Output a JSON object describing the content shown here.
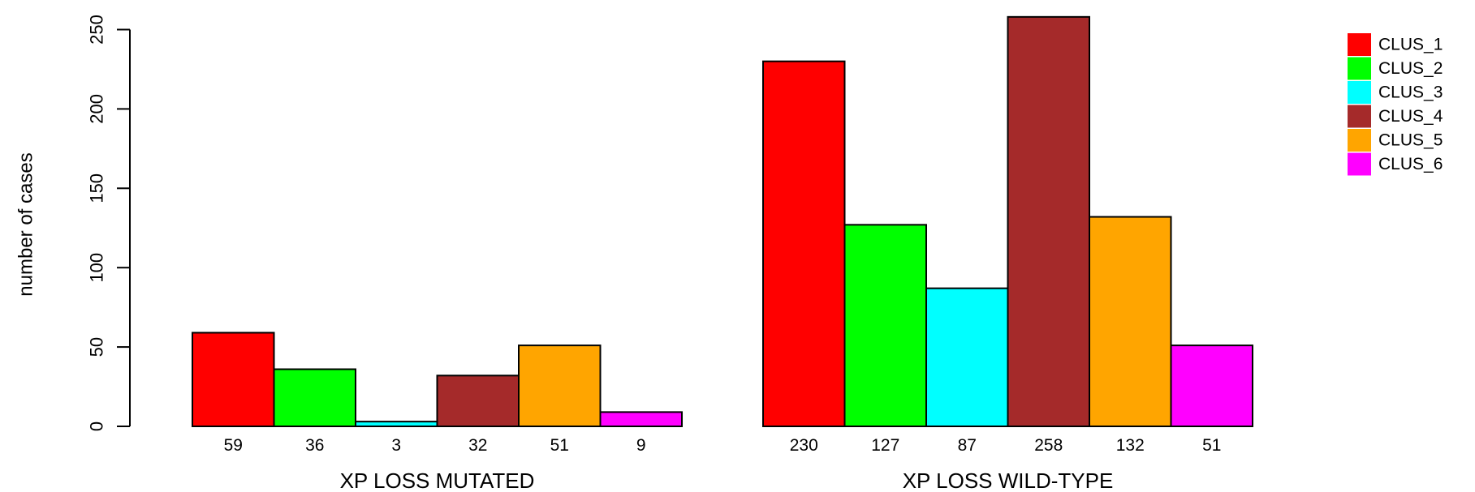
{
  "chart_data": {
    "type": "bar",
    "ylabel": "number of cases",
    "ylim": [
      0,
      260
    ],
    "yticks": [
      0,
      50,
      100,
      150,
      200,
      250
    ],
    "grid": false,
    "legend_position": "top-right",
    "series": [
      {
        "name": "CLUS_1",
        "color": "#ff0000"
      },
      {
        "name": "CLUS_2",
        "color": "#00ff00"
      },
      {
        "name": "CLUS_3",
        "color": "#00ffff"
      },
      {
        "name": "CLUS_4",
        "color": "#a52a2a"
      },
      {
        "name": "CLUS_5",
        "color": "#ffa500"
      },
      {
        "name": "CLUS_6",
        "color": "#ff00ff"
      }
    ],
    "groups": [
      {
        "label": "XP LOSS MUTATED",
        "values": [
          59,
          36,
          3,
          32,
          51,
          9
        ]
      },
      {
        "label": "XP LOSS WILD-TYPE",
        "values": [
          230,
          127,
          87,
          258,
          132,
          51
        ]
      }
    ]
  }
}
